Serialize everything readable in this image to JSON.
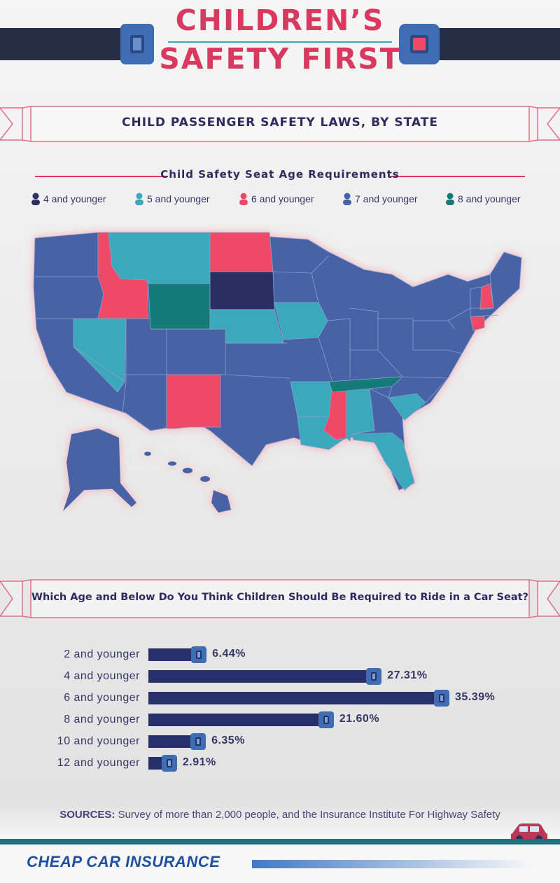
{
  "header": {
    "title_line1": "CHILDREN’S",
    "title_line2": "SAFETY FIRST"
  },
  "laws_ribbon": {
    "title": "Child passenger safety laws, by state"
  },
  "legend": {
    "heading": "Child Safety Seat Age Requirements",
    "items": [
      {
        "label": "4 and younger",
        "color": "#2b2f63"
      },
      {
        "label": "5 and younger",
        "color": "#3aa9bd"
      },
      {
        "label": "6 and younger",
        "color": "#ee4a66"
      },
      {
        "label": "7 and younger",
        "color": "#4663a5"
      },
      {
        "label": "8 and younger",
        "color": "#137a78"
      }
    ]
  },
  "map": {
    "icon": "us-states-map-icon"
  },
  "survey_ribbon": {
    "title": "Which Age and Below Do You Think Children Should Be Required to Ride in a Car Seat?"
  },
  "chart_data": {
    "type": "bar",
    "orientation": "horizontal",
    "title": "Which Age and Below Do You Think Children Should Be Required to Ride in a Car Seat?",
    "categories": [
      "2 and younger",
      "4 and younger",
      "6 and younger",
      "8 and younger",
      "10 and younger",
      "12 and younger"
    ],
    "values": [
      6.44,
      27.31,
      35.39,
      21.6,
      6.35,
      2.91
    ],
    "value_labels": [
      "6.44%",
      "27.31%",
      "35.39%",
      "21.60%",
      "6.35%",
      "2.91%"
    ],
    "unit": "%",
    "xlim": [
      0,
      35.39
    ],
    "grid": false,
    "legend": "none",
    "bar_color": "#27306b",
    "buckle_color": "#3f6db3"
  },
  "sources": {
    "label": "SOURCES:",
    "text": " Survey of more than 2,000 people, and the Insurance Institute For Highway Safety"
  },
  "footer": {
    "logo_text": "CHEAP CAR INSURANCE",
    "car_icon": "car-icon",
    "car_color": "#b83a55"
  }
}
